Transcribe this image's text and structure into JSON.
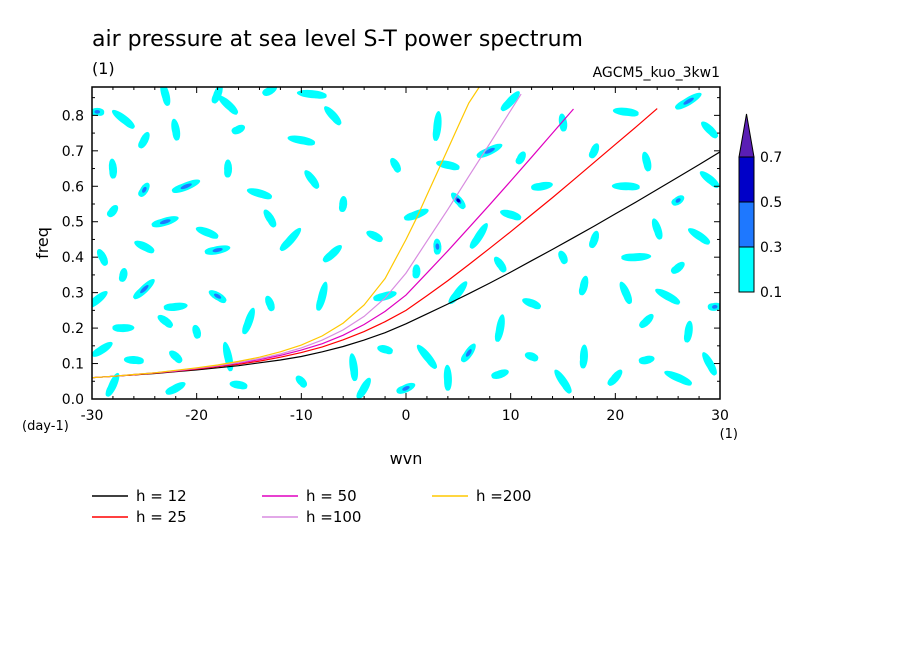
{
  "chart_data": {
    "type": "heatmap",
    "title": "air pressure at sea level S-T power spectrum",
    "subtitle": "(1)",
    "experiment": "AGCM5_kuo_3kw1",
    "xlabel": "wvn",
    "xunit": "(1)",
    "ylabel": "freq",
    "yunit": "(day-1)",
    "xlim": [
      -30,
      30
    ],
    "ylim": [
      0.0,
      0.88
    ],
    "xticks": [
      "-30",
      "-20",
      "-10",
      "0",
      "10",
      "20",
      "30"
    ],
    "yticks": [
      "0.0",
      "0.1",
      "0.2",
      "0.3",
      "0.4",
      "0.5",
      "0.6",
      "0.7",
      "0.8"
    ],
    "colorbar": {
      "levels": [
        "0.1",
        "0.3",
        "0.5",
        "0.7"
      ],
      "colors": [
        "#00ffff",
        "#1e78ff",
        "#0000c8",
        "#5a1eb4"
      ]
    },
    "patches": [
      {
        "x": -29.5,
        "y": 0.81,
        "level": 1
      },
      {
        "x": -27,
        "y": 0.79,
        "level": 0
      },
      {
        "x": -23,
        "y": 0.86,
        "level": 0
      },
      {
        "x": -18,
        "y": 0.86,
        "level": 0
      },
      {
        "x": -13,
        "y": 0.87,
        "level": 0
      },
      {
        "x": -9,
        "y": 0.86,
        "level": 0
      },
      {
        "x": -17,
        "y": 0.83,
        "level": 0
      },
      {
        "x": -22,
        "y": 0.76,
        "level": 0
      },
      {
        "x": -25,
        "y": 0.73,
        "level": 0
      },
      {
        "x": -16,
        "y": 0.76,
        "level": 0
      },
      {
        "x": -10,
        "y": 0.73,
        "level": 0
      },
      {
        "x": -7,
        "y": 0.8,
        "level": 0
      },
      {
        "x": -28,
        "y": 0.65,
        "level": 0
      },
      {
        "x": -25,
        "y": 0.59,
        "level": 1
      },
      {
        "x": -21,
        "y": 0.6,
        "level": 1
      },
      {
        "x": -14,
        "y": 0.58,
        "level": 0
      },
      {
        "x": -9,
        "y": 0.62,
        "level": 0
      },
      {
        "x": -17,
        "y": 0.65,
        "level": 0
      },
      {
        "x": -28,
        "y": 0.53,
        "level": 0
      },
      {
        "x": -23,
        "y": 0.5,
        "level": 1
      },
      {
        "x": -19,
        "y": 0.47,
        "level": 0
      },
      {
        "x": -13,
        "y": 0.51,
        "level": 0
      },
      {
        "x": -6,
        "y": 0.55,
        "level": 0
      },
      {
        "x": -11,
        "y": 0.45,
        "level": 0
      },
      {
        "x": -18,
        "y": 0.42,
        "level": 1
      },
      {
        "x": -25,
        "y": 0.43,
        "level": 0
      },
      {
        "x": -29,
        "y": 0.4,
        "level": 0
      },
      {
        "x": -27,
        "y": 0.35,
        "level": 0
      },
      {
        "x": -25,
        "y": 0.31,
        "level": 1
      },
      {
        "x": -22,
        "y": 0.26,
        "level": 0
      },
      {
        "x": -18,
        "y": 0.29,
        "level": 1
      },
      {
        "x": -13,
        "y": 0.27,
        "level": 0
      },
      {
        "x": -8,
        "y": 0.29,
        "level": 0
      },
      {
        "x": -29.5,
        "y": 0.28,
        "level": 0
      },
      {
        "x": -27,
        "y": 0.2,
        "level": 0
      },
      {
        "x": -23,
        "y": 0.22,
        "level": 0
      },
      {
        "x": -20,
        "y": 0.19,
        "level": 0
      },
      {
        "x": -15,
        "y": 0.22,
        "level": 0
      },
      {
        "x": -29,
        "y": 0.14,
        "level": 0
      },
      {
        "x": -26,
        "y": 0.11,
        "level": 0
      },
      {
        "x": -22,
        "y": 0.12,
        "level": 0
      },
      {
        "x": -17,
        "y": 0.12,
        "level": 0
      },
      {
        "x": -28,
        "y": 0.04,
        "level": 0
      },
      {
        "x": -22,
        "y": 0.03,
        "level": 0
      },
      {
        "x": -16,
        "y": 0.04,
        "level": 0
      },
      {
        "x": -10,
        "y": 0.05,
        "level": 0
      },
      {
        "x": -5,
        "y": 0.09,
        "level": 0
      },
      {
        "x": -4,
        "y": 0.03,
        "level": 0
      },
      {
        "x": 0,
        "y": 0.03,
        "level": 1
      },
      {
        "x": -2,
        "y": 0.14,
        "level": 0
      },
      {
        "x": 2,
        "y": 0.12,
        "level": 0
      },
      {
        "x": 4,
        "y": 0.06,
        "level": 0
      },
      {
        "x": 6,
        "y": 0.13,
        "level": 1
      },
      {
        "x": 9,
        "y": 0.07,
        "level": 0
      },
      {
        "x": 12,
        "y": 0.12,
        "level": 0
      },
      {
        "x": 15,
        "y": 0.05,
        "level": 0
      },
      {
        "x": 17,
        "y": 0.12,
        "level": 0
      },
      {
        "x": 20,
        "y": 0.06,
        "level": 0
      },
      {
        "x": 23,
        "y": 0.11,
        "level": 0
      },
      {
        "x": 26,
        "y": 0.06,
        "level": 0
      },
      {
        "x": 29,
        "y": 0.1,
        "level": 0
      },
      {
        "x": 27,
        "y": 0.19,
        "level": 0
      },
      {
        "x": 23,
        "y": 0.22,
        "level": 0
      },
      {
        "x": 29.5,
        "y": 0.26,
        "level": 1
      },
      {
        "x": 25,
        "y": 0.29,
        "level": 0
      },
      {
        "x": 21,
        "y": 0.3,
        "level": 0
      },
      {
        "x": 17,
        "y": 0.32,
        "level": 0
      },
      {
        "x": 26,
        "y": 0.37,
        "level": 0
      },
      {
        "x": 22,
        "y": 0.4,
        "level": 0
      },
      {
        "x": 28,
        "y": 0.46,
        "level": 0
      },
      {
        "x": 24,
        "y": 0.48,
        "level": 0
      },
      {
        "x": 18,
        "y": 0.45,
        "level": 0
      },
      {
        "x": 26,
        "y": 0.56,
        "level": 1
      },
      {
        "x": 21,
        "y": 0.6,
        "level": 0
      },
      {
        "x": 29,
        "y": 0.62,
        "level": 0
      },
      {
        "x": 23,
        "y": 0.67,
        "level": 0
      },
      {
        "x": 18,
        "y": 0.7,
        "level": 0
      },
      {
        "x": 27,
        "y": 0.84,
        "level": 1
      },
      {
        "x": 21,
        "y": 0.81,
        "level": 0
      },
      {
        "x": 29,
        "y": 0.76,
        "level": 0
      },
      {
        "x": 15,
        "y": 0.78,
        "level": 0
      },
      {
        "x": 11,
        "y": 0.68,
        "level": 0
      },
      {
        "x": 8,
        "y": 0.7,
        "level": 1
      },
      {
        "x": 4,
        "y": 0.66,
        "level": 0
      },
      {
        "x": 5,
        "y": 0.56,
        "level": 2
      },
      {
        "x": 3,
        "y": 0.43,
        "level": 1
      },
      {
        "x": 7,
        "y": 0.46,
        "level": 0
      },
      {
        "x": 1,
        "y": 0.52,
        "level": 0
      },
      {
        "x": 10,
        "y": 0.52,
        "level": 0
      },
      {
        "x": 9,
        "y": 0.38,
        "level": 0
      },
      {
        "x": 1,
        "y": 0.36,
        "level": 0
      },
      {
        "x": 5,
        "y": 0.3,
        "level": 0
      },
      {
        "x": -2,
        "y": 0.29,
        "level": 0
      },
      {
        "x": 12,
        "y": 0.27,
        "level": 0
      },
      {
        "x": -1,
        "y": 0.66,
        "level": 0
      },
      {
        "x": 3,
        "y": 0.77,
        "level": 0
      },
      {
        "x": 10,
        "y": 0.84,
        "level": 0
      },
      {
        "x": 13,
        "y": 0.6,
        "level": 0
      },
      {
        "x": -3,
        "y": 0.46,
        "level": 0
      },
      {
        "x": 15,
        "y": 0.4,
        "level": 0
      },
      {
        "x": 9,
        "y": 0.2,
        "level": 0
      },
      {
        "x": -7,
        "y": 0.41,
        "level": 0
      }
    ],
    "series": [
      {
        "name": "h = 12",
        "color": "#000000",
        "label": "h = 12",
        "x": [
          -30,
          -28,
          -26,
          -24,
          -22,
          -20,
          -18,
          -16,
          -14,
          -12,
          -10,
          -8,
          -6,
          -4,
          -2,
          0,
          2,
          4,
          6,
          8,
          10,
          12,
          14,
          16,
          18,
          20,
          22,
          24,
          26,
          28,
          30
        ],
        "y": [
          0.06,
          0.064,
          0.068,
          0.072,
          0.077,
          0.082,
          0.088,
          0.094,
          0.102,
          0.11,
          0.12,
          0.133,
          0.148,
          0.166,
          0.187,
          0.212,
          0.24,
          0.268,
          0.297,
          0.327,
          0.358,
          0.39,
          0.422,
          0.455,
          0.488,
          0.522,
          0.556,
          0.591,
          0.626,
          0.661,
          0.697
        ]
      },
      {
        "name": "h = 25",
        "color": "#ff0000",
        "label": "h = 25",
        "x": [
          -30,
          -28,
          -26,
          -24,
          -22,
          -20,
          -18,
          -16,
          -14,
          -12,
          -10,
          -8,
          -6,
          -4,
          -2,
          0,
          2,
          4,
          6,
          8,
          10,
          12,
          14,
          16,
          18,
          20,
          22,
          24
        ],
        "y": [
          0.06,
          0.064,
          0.068,
          0.073,
          0.078,
          0.084,
          0.091,
          0.098,
          0.107,
          0.118,
          0.131,
          0.147,
          0.167,
          0.19,
          0.218,
          0.25,
          0.291,
          0.334,
          0.379,
          0.425,
          0.472,
          0.52,
          0.568,
          0.618,
          0.668,
          0.718,
          0.768,
          0.819
        ]
      },
      {
        "name": "h = 50",
        "color": "#e000c0",
        "label": "h = 50",
        "x": [
          -30,
          -28,
          -26,
          -24,
          -22,
          -20,
          -18,
          -16,
          -14,
          -12,
          -10,
          -8,
          -6,
          -4,
          -2,
          0,
          2,
          4,
          6,
          8,
          10,
          12,
          14,
          16
        ],
        "y": [
          0.06,
          0.064,
          0.069,
          0.074,
          0.079,
          0.086,
          0.093,
          0.101,
          0.111,
          0.123,
          0.138,
          0.156,
          0.18,
          0.21,
          0.247,
          0.293,
          0.355,
          0.418,
          0.483,
          0.548,
          0.615,
          0.682,
          0.75,
          0.818
        ]
      },
      {
        "name": "h =100",
        "color": "#d88ce0",
        "label": "h =100",
        "x": [
          -30,
          -28,
          -26,
          -24,
          -22,
          -20,
          -18,
          -16,
          -14,
          -12,
          -10,
          -8,
          -6,
          -4,
          -2,
          0,
          2,
          4,
          6,
          8,
          10,
          11
        ],
        "y": [
          0.06,
          0.064,
          0.069,
          0.074,
          0.08,
          0.087,
          0.094,
          0.103,
          0.114,
          0.127,
          0.144,
          0.166,
          0.195,
          0.233,
          0.285,
          0.355,
          0.445,
          0.535,
          0.628,
          0.72,
          0.814,
          0.86
        ]
      },
      {
        "name": "h =200",
        "color": "#ffc800",
        "label": "h =200",
        "x": [
          -30,
          -28,
          -26,
          -24,
          -22,
          -20,
          -18,
          -16,
          -14,
          -12,
          -10,
          -8,
          -6,
          -4,
          -2,
          0,
          1,
          2,
          3,
          4,
          5,
          6,
          7
        ],
        "y": [
          0.06,
          0.064,
          0.069,
          0.074,
          0.081,
          0.088,
          0.096,
          0.106,
          0.118,
          0.133,
          0.152,
          0.178,
          0.214,
          0.265,
          0.34,
          0.45,
          0.51,
          0.575,
          0.64,
          0.705,
          0.77,
          0.835,
          0.88
        ]
      }
    ]
  }
}
